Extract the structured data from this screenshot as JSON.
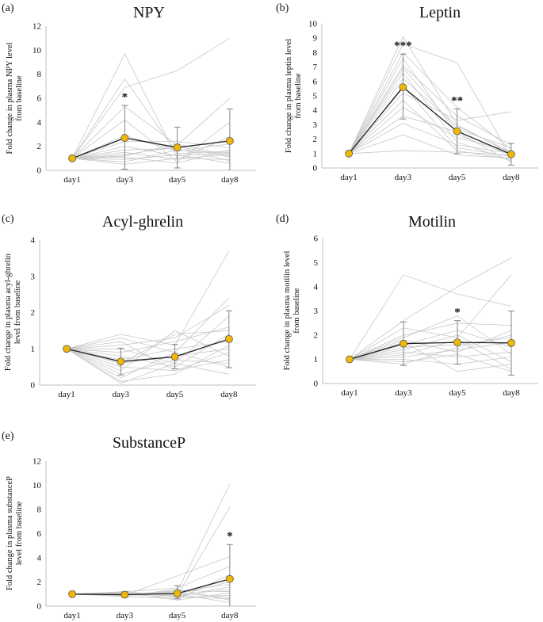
{
  "figure": {
    "colors": {
      "mean_line": "#222222",
      "marker_fill": "#f2b705",
      "marker_stroke": "#555555",
      "individual": "#c8c8c8",
      "axis": "#bfbfbf",
      "text": "#111111"
    }
  },
  "chart_data": [
    {
      "panel": "(a)",
      "title": "NPY",
      "type": "line",
      "categories": [
        "day1",
        "day3",
        "day5",
        "day8"
      ],
      "ylabel": [
        "Fold change in plasma NPY level",
        "from baseline"
      ],
      "ylim": [
        0,
        12
      ],
      "yticks": [
        0,
        2,
        4,
        6,
        8,
        10,
        12
      ],
      "mean": [
        1.0,
        2.7,
        1.9,
        2.45
      ],
      "error_bars": [
        [
          1.0,
          1.0
        ],
        [
          0.1,
          5.4
        ],
        [
          0.2,
          3.6
        ],
        [
          -0.2,
          5.1
        ]
      ],
      "significance": [
        "",
        "*",
        "",
        ""
      ],
      "individuals": [
        [
          1,
          9.7,
          1.0,
          1.3
        ],
        [
          1,
          7.6,
          1.4,
          1.6
        ],
        [
          1,
          6.9,
          8.3,
          11.0
        ],
        [
          1,
          5.3,
          2.1,
          6.0
        ],
        [
          1,
          4.2,
          0.7,
          4.0
        ],
        [
          1,
          2.9,
          1.6,
          2.2
        ],
        [
          1,
          2.4,
          2.4,
          1.9
        ],
        [
          1,
          2.0,
          1.2,
          1.5
        ],
        [
          1,
          1.7,
          1.8,
          0.8
        ],
        [
          1,
          1.5,
          0.9,
          2.8
        ],
        [
          1,
          1.3,
          2.0,
          1.1
        ],
        [
          1,
          1.1,
          0.6,
          1.7
        ],
        [
          1,
          0.9,
          1.3,
          0.6
        ],
        [
          1,
          0.7,
          1.7,
          1.4
        ],
        [
          1,
          0.5,
          1.0,
          0.9
        ],
        [
          1,
          1.2,
          2.2,
          1.2
        ]
      ]
    },
    {
      "panel": "(b)",
      "title": "Leptin",
      "type": "line",
      "categories": [
        "day1",
        "day3",
        "day5",
        "day8"
      ],
      "ylabel": [
        "Fold change in plasma leptin level",
        "from baseline"
      ],
      "ylim": [
        0,
        10
      ],
      "yticks": [
        0,
        1,
        2,
        3,
        4,
        5,
        6,
        7,
        8,
        9,
        10
      ],
      "mean": [
        1.0,
        5.6,
        2.55,
        0.95
      ],
      "error_bars": [
        [
          1.0,
          1.0
        ],
        [
          3.4,
          7.9
        ],
        [
          1.0,
          4.1
        ],
        [
          0.2,
          1.7
        ]
      ],
      "significance": [
        "",
        "***",
        "**",
        ""
      ],
      "individuals": [
        [
          1,
          9.1,
          3.0,
          1.0
        ],
        [
          1,
          8.6,
          7.3,
          0.7
        ],
        [
          1,
          8.0,
          4.2,
          1.3
        ],
        [
          1,
          7.6,
          2.3,
          0.9
        ],
        [
          1,
          7.1,
          3.6,
          1.6
        ],
        [
          1,
          6.6,
          1.8,
          0.5
        ],
        [
          1,
          6.2,
          2.9,
          1.1
        ],
        [
          1,
          5.7,
          1.4,
          0.8
        ],
        [
          1,
          5.2,
          3.3,
          3.9
        ],
        [
          1,
          4.7,
          1.2,
          0.6
        ],
        [
          1,
          4.2,
          2.1,
          1.2
        ],
        [
          1,
          3.6,
          2.5,
          0.4
        ],
        [
          1,
          3.1,
          1.6,
          1.0
        ],
        [
          1,
          2.3,
          0.9,
          0.7
        ],
        [
          1,
          1.2,
          1.1,
          0.9
        ],
        [
          1,
          6.9,
          2.7,
          1.4
        ]
      ]
    },
    {
      "panel": "(c)",
      "title": "Acyl-ghrelin",
      "type": "line",
      "categories": [
        "day1",
        "day3",
        "day5",
        "day8"
      ],
      "ylabel": [
        "Fold change in plasma acyl-ghrelin",
        "level from baseline"
      ],
      "ylim": [
        0,
        4
      ],
      "yticks": [
        0,
        1,
        2,
        3,
        4
      ],
      "mean": [
        1.0,
        0.65,
        0.78,
        1.27
      ],
      "error_bars": [
        [
          1.0,
          1.0
        ],
        [
          0.28,
          1.02
        ],
        [
          0.45,
          1.12
        ],
        [
          0.48,
          2.05
        ]
      ],
      "significance": [
        "",
        "",
        "",
        ""
      ],
      "individuals": [
        [
          1,
          1.4,
          1.1,
          3.7
        ],
        [
          1,
          1.3,
          0.9,
          2.4
        ],
        [
          1,
          1.1,
          1.3,
          2.2
        ],
        [
          1,
          1.0,
          0.6,
          1.9
        ],
        [
          1,
          0.9,
          1.2,
          1.6
        ],
        [
          1,
          0.8,
          0.5,
          1.4
        ],
        [
          1,
          0.7,
          1.0,
          1.2
        ],
        [
          1,
          0.6,
          0.8,
          1.0
        ],
        [
          1,
          0.5,
          0.4,
          0.9
        ],
        [
          1,
          0.4,
          1.5,
          0.8
        ],
        [
          1,
          0.3,
          0.7,
          0.6
        ],
        [
          1,
          0.2,
          0.9,
          0.5
        ],
        [
          1,
          0.1,
          0.3,
          1.1
        ],
        [
          1,
          0.05,
          0.6,
          0.3
        ],
        [
          1,
          1.2,
          0.4,
          0.7
        ],
        [
          1,
          0.6,
          1.4,
          1.5
        ]
      ]
    },
    {
      "panel": "(d)",
      "title": "Motilin",
      "type": "line",
      "categories": [
        "day1",
        "day3",
        "day5",
        "day8"
      ],
      "ylabel": [
        "Fold change in plasma motilin level",
        "from baseline"
      ],
      "ylim": [
        0,
        6
      ],
      "yticks": [
        0,
        1,
        2,
        3,
        4,
        5,
        6
      ],
      "mean": [
        1.0,
        1.65,
        1.7,
        1.68
      ],
      "error_bars": [
        [
          1.0,
          1.0
        ],
        [
          0.75,
          2.55
        ],
        [
          0.8,
          2.6
        ],
        [
          0.35,
          3.0
        ]
      ],
      "significance": [
        "",
        "",
        "*",
        ""
      ],
      "individuals": [
        [
          1,
          4.5,
          3.7,
          3.2
        ],
        [
          1,
          2.6,
          4.0,
          5.2
        ],
        [
          1,
          2.3,
          1.9,
          4.5
        ],
        [
          1,
          2.0,
          2.5,
          2.4
        ],
        [
          1,
          1.8,
          1.3,
          2.2
        ],
        [
          1,
          1.6,
          2.2,
          1.5
        ],
        [
          1,
          1.5,
          1.6,
          1.9
        ],
        [
          1,
          1.4,
          2.0,
          0.9
        ],
        [
          1,
          1.3,
          1.1,
          1.3
        ],
        [
          1,
          1.2,
          1.8,
          0.6
        ],
        [
          1,
          1.1,
          1.4,
          1.7
        ],
        [
          1,
          1.0,
          0.8,
          1.1
        ],
        [
          1,
          0.9,
          1.2,
          0.5
        ],
        [
          1,
          0.8,
          1.5,
          2.0
        ],
        [
          1,
          1.7,
          0.5,
          0.8
        ],
        [
          1,
          1.9,
          2.8,
          1.2
        ]
      ]
    },
    {
      "panel": "(e)",
      "title": "SubstanceP",
      "type": "line",
      "categories": [
        "day1",
        "day3",
        "day5",
        "day8"
      ],
      "ylabel": [
        "Fold change in plasma substanceP",
        "level from baseline"
      ],
      "ylim": [
        0,
        12
      ],
      "yticks": [
        0,
        2,
        4,
        6,
        8,
        10,
        12
      ],
      "mean": [
        1.0,
        0.95,
        1.05,
        2.25
      ],
      "error_bars": [
        [
          1.0,
          1.0
        ],
        [
          0.75,
          1.2
        ],
        [
          0.6,
          1.7
        ],
        [
          -0.55,
          5.1
        ]
      ],
      "significance": [
        "",
        "",
        "",
        "*"
      ],
      "individuals": [
        [
          1,
          1.0,
          1.2,
          10.1
        ],
        [
          1,
          1.1,
          0.9,
          8.2
        ],
        [
          1,
          0.9,
          2.5,
          4.1
        ],
        [
          1,
          1.2,
          1.5,
          3.3
        ],
        [
          1,
          0.8,
          0.6,
          2.6
        ],
        [
          1,
          1.0,
          1.0,
          2.0
        ],
        [
          1,
          1.1,
          0.8,
          1.6
        ],
        [
          1,
          0.9,
          1.3,
          1.2
        ],
        [
          1,
          1.0,
          0.7,
          0.9
        ],
        [
          1,
          0.95,
          1.1,
          0.7
        ],
        [
          1,
          1.05,
          0.9,
          1.4
        ],
        [
          1,
          0.85,
          1.4,
          0.5
        ],
        [
          1,
          1.15,
          0.5,
          1.1
        ],
        [
          1,
          0.9,
          1.0,
          0.3
        ],
        [
          1,
          1.0,
          1.2,
          1.8
        ],
        [
          1,
          1.2,
          0.8,
          0.6
        ]
      ]
    }
  ]
}
